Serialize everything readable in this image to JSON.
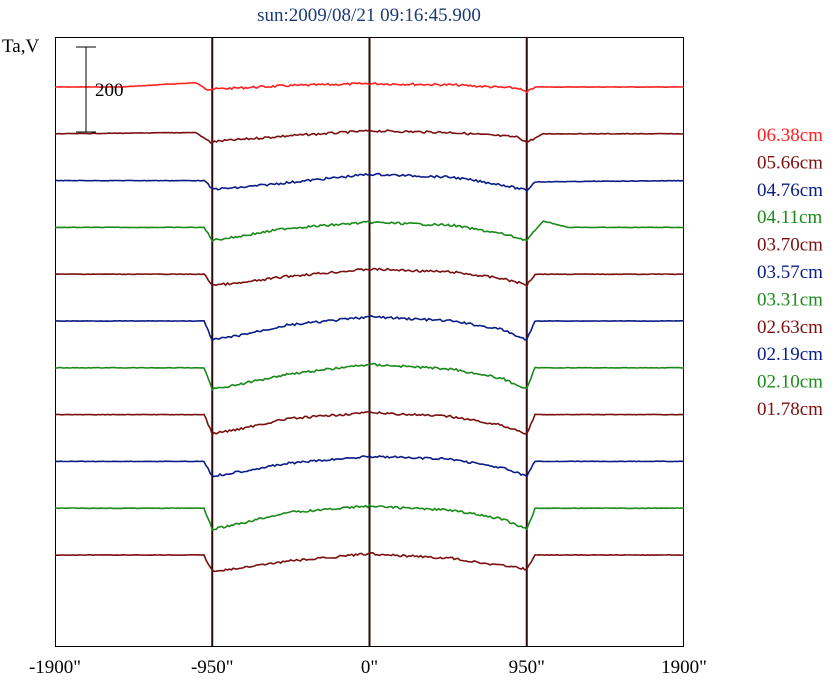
{
  "chart_data": {
    "type": "line",
    "title": "sun:2009/08/21 09:16:45.900",
    "ylabel": "Ta,V",
    "scale_bar_label": "200",
    "x_ticks": [
      "-1900\"",
      "-950\"",
      "0\"",
      "950\"",
      "1900\""
    ],
    "x_tick_values": [
      -1900,
      -950,
      0,
      950,
      1900
    ],
    "xlim": [
      -1900,
      1900
    ],
    "vertical_markers": [
      -950,
      0,
      950
    ],
    "series": [
      {
        "name": "06.38cm",
        "color": "#ff2020",
        "values": [
          {
            "x": -1900,
            "y": 0
          },
          {
            "x": -1500,
            "y": 0
          },
          {
            "x": -1150,
            "y": 8
          },
          {
            "x": -1050,
            "y": 10
          },
          {
            "x": -980,
            "y": -5
          },
          {
            "x": -950,
            "y": -5
          },
          {
            "x": -500,
            "y": 3
          },
          {
            "x": 0,
            "y": 8
          },
          {
            "x": 500,
            "y": 5
          },
          {
            "x": 900,
            "y": -3
          },
          {
            "x": 950,
            "y": -13
          },
          {
            "x": 1000,
            "y": 0
          },
          {
            "x": 1900,
            "y": 0
          }
        ]
      },
      {
        "name": "05.66cm",
        "color": "#7a1010",
        "values": [
          {
            "x": -1900,
            "y": 0
          },
          {
            "x": -1050,
            "y": 3
          },
          {
            "x": -960,
            "y": -20
          },
          {
            "x": -900,
            "y": -17
          },
          {
            "x": -500,
            "y": -5
          },
          {
            "x": 0,
            "y": 7
          },
          {
            "x": 500,
            "y": 3
          },
          {
            "x": 900,
            "y": -8
          },
          {
            "x": 950,
            "y": -20
          },
          {
            "x": 1050,
            "y": 0
          },
          {
            "x": 1900,
            "y": 0
          }
        ]
      },
      {
        "name": "04.76cm",
        "color": "#0a1c86",
        "values": [
          {
            "x": -1900,
            "y": 0
          },
          {
            "x": -1000,
            "y": 0
          },
          {
            "x": -950,
            "y": -20
          },
          {
            "x": -800,
            "y": -17
          },
          {
            "x": -500,
            "y": -5
          },
          {
            "x": 0,
            "y": 15
          },
          {
            "x": 500,
            "y": 8
          },
          {
            "x": 800,
            "y": -10
          },
          {
            "x": 950,
            "y": -23
          },
          {
            "x": 1000,
            "y": -3
          },
          {
            "x": 1900,
            "y": 0
          }
        ]
      },
      {
        "name": "04.11cm",
        "color": "#1a8a1a",
        "values": [
          {
            "x": -1900,
            "y": 0
          },
          {
            "x": -1000,
            "y": 0
          },
          {
            "x": -950,
            "y": -30
          },
          {
            "x": -800,
            "y": -22
          },
          {
            "x": -500,
            "y": -2
          },
          {
            "x": 0,
            "y": 12
          },
          {
            "x": 500,
            "y": 5
          },
          {
            "x": 800,
            "y": -15
          },
          {
            "x": 950,
            "y": -30
          },
          {
            "x": 1050,
            "y": 15
          },
          {
            "x": 1200,
            "y": 0
          },
          {
            "x": 1900,
            "y": 0
          }
        ]
      },
      {
        "name": "03.70cm",
        "color": "#7a1010",
        "values": [
          {
            "x": -1900,
            "y": 0
          },
          {
            "x": -1000,
            "y": 0
          },
          {
            "x": -950,
            "y": -25
          },
          {
            "x": -800,
            "y": -22
          },
          {
            "x": -500,
            "y": -5
          },
          {
            "x": 0,
            "y": 12
          },
          {
            "x": 500,
            "y": 5
          },
          {
            "x": 800,
            "y": -10
          },
          {
            "x": 950,
            "y": -25
          },
          {
            "x": 1000,
            "y": 0
          },
          {
            "x": 1900,
            "y": 0
          }
        ]
      },
      {
        "name": "03.57cm",
        "color": "#0a1c86",
        "values": [
          {
            "x": -1900,
            "y": 0
          },
          {
            "x": -1000,
            "y": 0
          },
          {
            "x": -950,
            "y": -45
          },
          {
            "x": -800,
            "y": -35
          },
          {
            "x": -500,
            "y": -10
          },
          {
            "x": 0,
            "y": 10
          },
          {
            "x": 500,
            "y": 0
          },
          {
            "x": 800,
            "y": -20
          },
          {
            "x": 950,
            "y": -45
          },
          {
            "x": 1000,
            "y": 0
          },
          {
            "x": 1900,
            "y": 0
          }
        ]
      },
      {
        "name": "03.31cm",
        "color": "#1a8a1a",
        "values": [
          {
            "x": -1900,
            "y": 0
          },
          {
            "x": -1000,
            "y": 0
          },
          {
            "x": -950,
            "y": -50
          },
          {
            "x": -800,
            "y": -40
          },
          {
            "x": -500,
            "y": -15
          },
          {
            "x": 0,
            "y": 8
          },
          {
            "x": 500,
            "y": -3
          },
          {
            "x": 800,
            "y": -25
          },
          {
            "x": 950,
            "y": -50
          },
          {
            "x": 1000,
            "y": 0
          },
          {
            "x": 1900,
            "y": 0
          }
        ]
      },
      {
        "name": "02.63cm",
        "color": "#7a1010",
        "values": [
          {
            "x": -1900,
            "y": 0
          },
          {
            "x": -1000,
            "y": 0
          },
          {
            "x": -950,
            "y": -45
          },
          {
            "x": -800,
            "y": -35
          },
          {
            "x": -500,
            "y": -10
          },
          {
            "x": 0,
            "y": 5
          },
          {
            "x": 500,
            "y": -5
          },
          {
            "x": 800,
            "y": -25
          },
          {
            "x": 950,
            "y": -45
          },
          {
            "x": 1000,
            "y": 0
          },
          {
            "x": 1900,
            "y": 0
          }
        ]
      },
      {
        "name": "02.19cm",
        "color": "#0a1c86",
        "values": [
          {
            "x": -1900,
            "y": 0
          },
          {
            "x": -1000,
            "y": 0
          },
          {
            "x": -950,
            "y": -35
          },
          {
            "x": -800,
            "y": -25
          },
          {
            "x": -500,
            "y": -5
          },
          {
            "x": 0,
            "y": 12
          },
          {
            "x": 500,
            "y": 5
          },
          {
            "x": 800,
            "y": -15
          },
          {
            "x": 950,
            "y": -35
          },
          {
            "x": 1000,
            "y": 0
          },
          {
            "x": 1900,
            "y": 0
          }
        ]
      },
      {
        "name": "02.10cm",
        "color": "#1a8a1a",
        "values": [
          {
            "x": -1900,
            "y": 0
          },
          {
            "x": -1000,
            "y": 0
          },
          {
            "x": -950,
            "y": -50
          },
          {
            "x": -800,
            "y": -38
          },
          {
            "x": -500,
            "y": -10
          },
          {
            "x": 0,
            "y": 5
          },
          {
            "x": 500,
            "y": -5
          },
          {
            "x": 800,
            "y": -25
          },
          {
            "x": 950,
            "y": -50
          },
          {
            "x": 1000,
            "y": 0
          },
          {
            "x": 1900,
            "y": 0
          }
        ]
      },
      {
        "name": "01.78cm",
        "color": "#7a1010",
        "values": [
          {
            "x": -1900,
            "y": 0
          },
          {
            "x": -1000,
            "y": 0
          },
          {
            "x": -950,
            "y": -38
          },
          {
            "x": -800,
            "y": -32
          },
          {
            "x": -500,
            "y": -15
          },
          {
            "x": 0,
            "y": 3
          },
          {
            "x": 500,
            "y": -8
          },
          {
            "x": 800,
            "y": -25
          },
          {
            "x": 950,
            "y": -33
          },
          {
            "x": 1000,
            "y": 0
          },
          {
            "x": 1900,
            "y": 0
          }
        ]
      }
    ]
  }
}
